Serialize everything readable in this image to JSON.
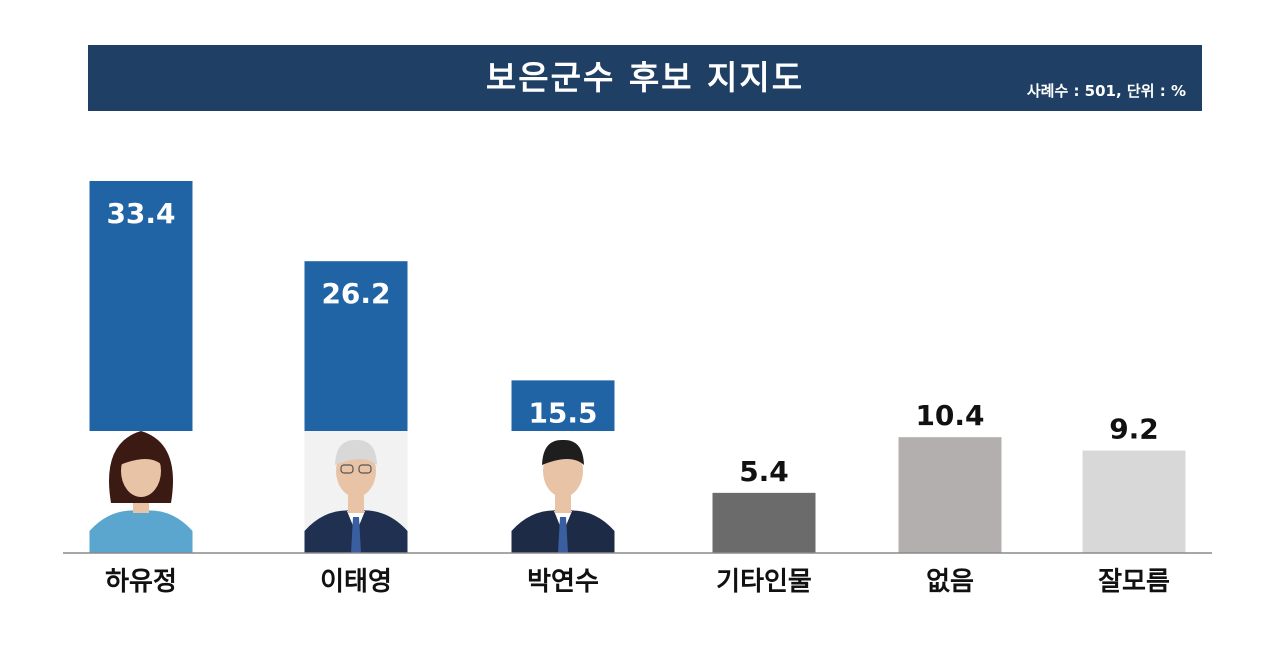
{
  "header": {
    "title": "보은군수 후보 지지도",
    "note": "사례수 : 501, 단위 : %"
  },
  "colors": {
    "title_bg": "#1f3f64",
    "candidate_bar": "#2164a6",
    "other": "#6b6b6b",
    "none": "#b3afaf",
    "dont_know": "#d9d8d8"
  },
  "chart_data": {
    "type": "bar",
    "categories": [
      "하유정",
      "이태영",
      "박연수",
      "기타인물",
      "없음",
      "잘모름"
    ],
    "values": [
      33.4,
      26.2,
      15.5,
      5.4,
      10.4,
      9.2
    ],
    "value_labels": [
      "33.4",
      "26.2",
      "15.5",
      "5.4",
      "10.4",
      "9.2"
    ],
    "bar_colors": [
      "#2164a6",
      "#2164a6",
      "#2164a6",
      "#6b6b6b",
      "#b3afaf",
      "#d9d8d8"
    ],
    "label_inside": [
      true,
      true,
      true,
      false,
      false,
      false
    ],
    "has_photo": [
      true,
      true,
      true,
      false,
      false,
      false
    ],
    "ylim": [
      0,
      33.4
    ],
    "grid": false,
    "legend": "none"
  }
}
